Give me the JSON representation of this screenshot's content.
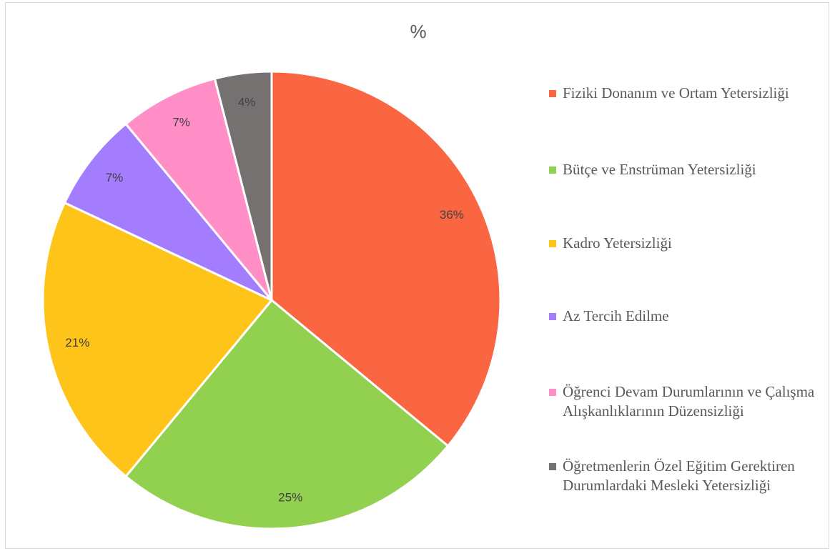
{
  "chart_data": {
    "type": "pie",
    "title": "%",
    "categories": [
      "Fiziki Donanım ve Ortam Yetersizliği",
      "Bütçe ve Enstrüman Yetersizliği",
      "Kadro Yetersizliği",
      "Az Tercih Edilme",
      "Öğrenci Devam Durumlarının ve Çalışma Alışkanlıklarının Düzensizliği",
      "Öğretmenlerin Özel Eğitim Gerektiren Durumlardaki Mesleki Yetersizliği"
    ],
    "values": [
      36,
      25,
      21,
      7,
      7,
      4
    ],
    "value_labels": [
      "36%",
      "25%",
      "21%",
      "7%",
      "7%",
      "4%"
    ],
    "colors": [
      "#F96641",
      "#92D050",
      "#FFC419",
      "#A47DFF",
      "#FF8FC6",
      "#767171"
    ],
    "legend": "right"
  }
}
